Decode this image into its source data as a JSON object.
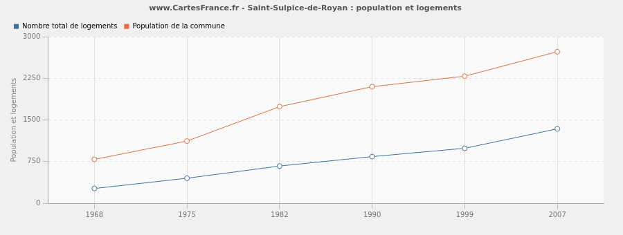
{
  "chart_data": {
    "type": "line",
    "title": "www.CartesFrance.fr - Saint-Sulpice-de-Royan : population et logements",
    "y_label": "Population et logements",
    "categories": [
      "1968",
      "1975",
      "1982",
      "1990",
      "1999",
      "2007"
    ],
    "series": [
      {
        "name": "Nombre total de logements",
        "color": "#3f6f9f",
        "values": [
          265,
          450,
          670,
          840,
          990,
          1340
        ]
      },
      {
        "name": "Population de la commune",
        "color": "#e0703f",
        "values": [
          790,
          1120,
          1740,
          2100,
          2290,
          2730
        ]
      }
    ],
    "ylim": [
      0,
      3000
    ],
    "yticks": [
      0,
      750,
      1500,
      2250,
      3000
    ],
    "grid": true,
    "legend": "top",
    "marker": "circle"
  }
}
